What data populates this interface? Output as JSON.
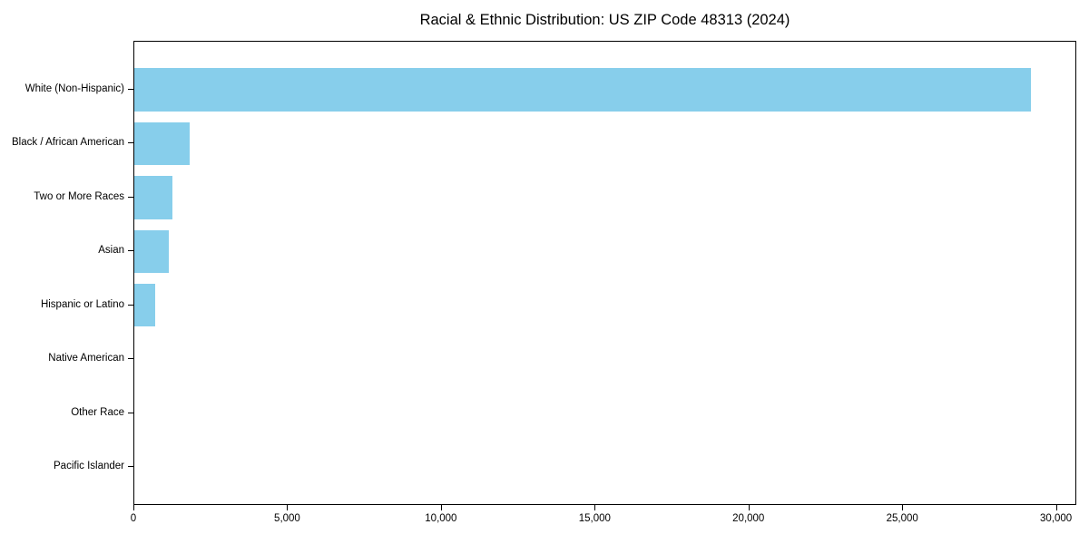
{
  "chart_data": {
    "type": "bar",
    "orientation": "horizontal",
    "title": "Racial & Ethnic Distribution: US ZIP Code 48313 (2024)",
    "categories": [
      "White (Non-Hispanic)",
      "Black / African American",
      "Two or More Races",
      "Asian",
      "Hispanic or Latino",
      "Native American",
      "Other Race",
      "Pacific Islander"
    ],
    "values": [
      29200,
      1800,
      1240,
      1130,
      680,
      0,
      0,
      0
    ],
    "xlabel": "",
    "ylabel": "",
    "xlim": [
      0,
      30660
    ],
    "x_ticks": [
      0,
      5000,
      10000,
      15000,
      20000,
      25000,
      30000
    ],
    "x_tick_labels": [
      "0",
      "5,000",
      "10,000",
      "15,000",
      "20,000",
      "25,000",
      "30,000"
    ],
    "grid": false,
    "legend": "none",
    "bar_color": "#87CEEB",
    "frame_color": "#000000",
    "background_color": "#FFFFFF",
    "text_color": "#000000"
  }
}
